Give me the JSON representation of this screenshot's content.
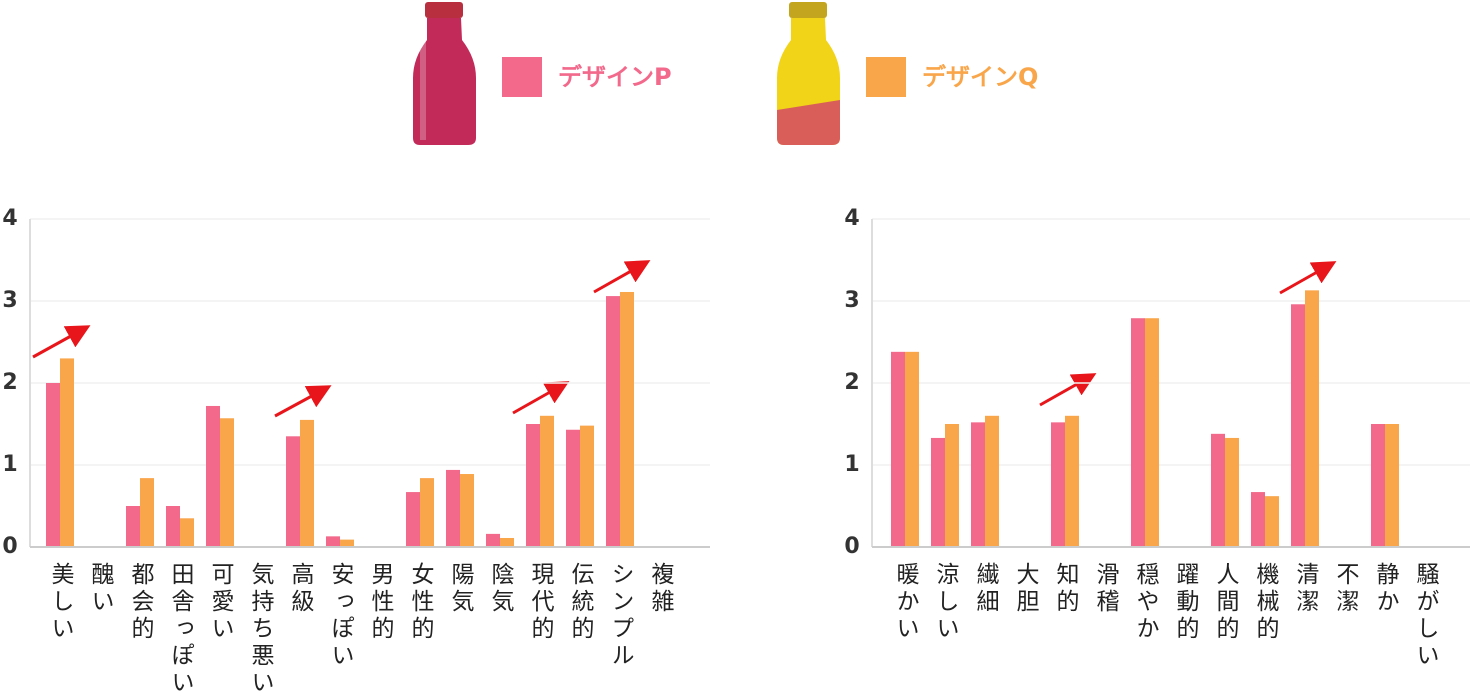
{
  "chart_data": [
    {
      "type": "bar",
      "categories": [
        "美しい",
        "醜い",
        "都会的",
        "田舎っぽい",
        "可愛い",
        "気持ち悪い",
        "高級",
        "安っぽい",
        "男性的",
        "女性的",
        "陽気",
        "陰気",
        "現代的",
        "伝統的",
        "シンプル",
        "複雑"
      ],
      "series": [
        {
          "name": "デザインP",
          "color": "#f2698c",
          "values": [
            2.0,
            0,
            0.5,
            0.5,
            1.72,
            0,
            1.35,
            0.13,
            0,
            0.67,
            0.94,
            0.16,
            1.5,
            1.43,
            3.06,
            0
          ]
        },
        {
          "name": "デザインQ",
          "color": "#f9a64b",
          "values": [
            2.3,
            0,
            0.84,
            0.35,
            1.57,
            0,
            1.55,
            0.09,
            0,
            0.84,
            0.89,
            0.11,
            1.6,
            1.48,
            3.11,
            0
          ]
        }
      ],
      "ylim": [
        0,
        4
      ],
      "yticks": [
        0,
        1,
        2,
        3,
        4
      ],
      "grid": true
    },
    {
      "type": "bar",
      "categories": [
        "暖かい",
        "涼しい",
        "繊細",
        "大胆",
        "知的",
        "滑稽",
        "穏やか",
        "躍動的",
        "人間的",
        "機械的",
        "清潔",
        "不潔",
        "静か",
        "騒がしい"
      ],
      "series": [
        {
          "color": "#f2698c",
          "values": [
            2.38,
            1.33,
            1.52,
            0,
            1.52,
            0,
            2.79,
            0,
            1.38,
            0.67,
            2.96,
            0,
            1.5,
            0
          ]
        },
        {
          "color": "#f9a64b",
          "values": [
            2.38,
            1.5,
            1.6,
            0,
            1.6,
            0,
            2.79,
            0,
            1.33,
            0.62,
            3.13,
            0,
            1.5,
            0
          ]
        }
      ],
      "ylim": [
        0,
        4
      ],
      "yticks": [
        0,
        1,
        2,
        3,
        4
      ],
      "grid": true
    }
  ]
}
